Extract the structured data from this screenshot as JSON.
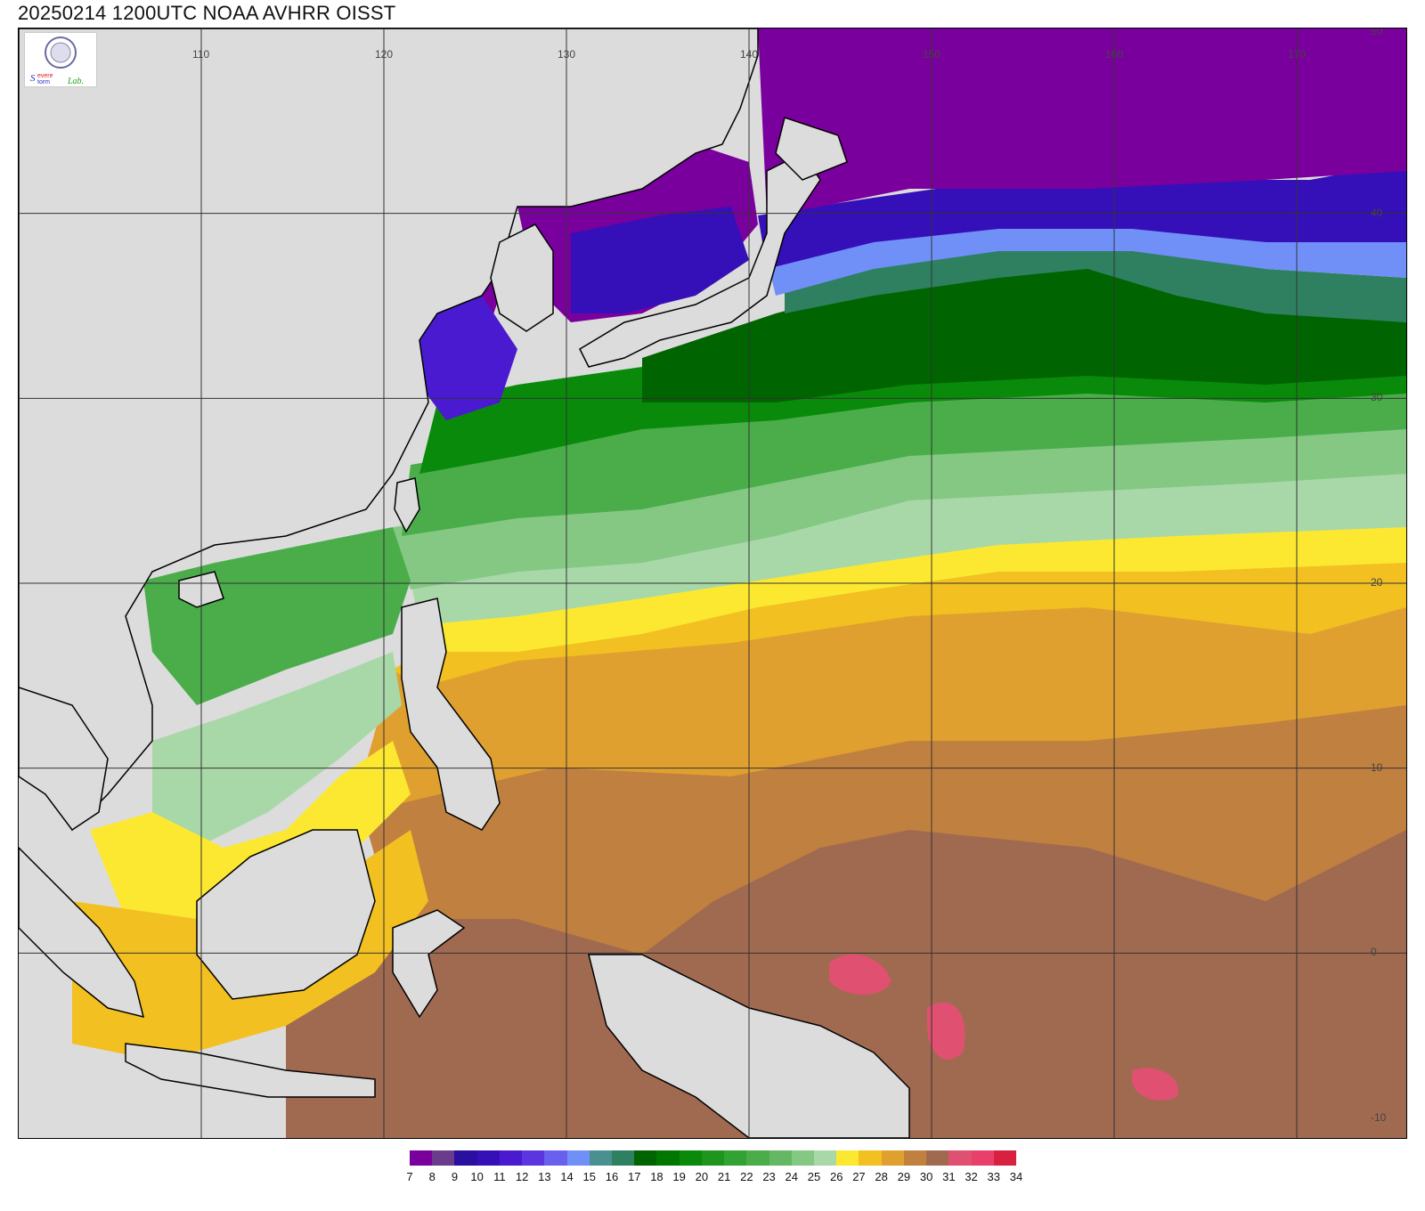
{
  "title": "20250214 1200UTC NOAA AVHRR OISST",
  "logo": {
    "org": "Severe Storm Lab.",
    "letters": [
      "Severe",
      "Storm",
      "Lab."
    ]
  },
  "axes": {
    "lon_ticks": [
      "110",
      "120",
      "130",
      "140",
      "150",
      "160",
      "170"
    ],
    "lat_ticks": [
      "50",
      "40",
      "30",
      "20",
      "10",
      "0",
      "-10"
    ],
    "lon_range": [
      100,
      176
    ],
    "lat_range": [
      -10,
      50
    ]
  },
  "colorbar": {
    "labels": [
      "7",
      "8",
      "9",
      "10",
      "11",
      "12",
      "13",
      "14",
      "15",
      "16",
      "17",
      "18",
      "19",
      "20",
      "21",
      "22",
      "23",
      "24",
      "25",
      "26",
      "27",
      "28",
      "29",
      "30",
      "31",
      "32",
      "33",
      "34"
    ],
    "colors": [
      "#7a009e",
      "#6a3c8c",
      "#2a0fa0",
      "#3510b8",
      "#4a1ad0",
      "#5a35e0",
      "#6a60f0",
      "#7090f8",
      "#4a9090",
      "#2e8060",
      "#006400",
      "#007800",
      "#0a8a0a",
      "#1e961e",
      "#32a232",
      "#4aad4a",
      "#64b864",
      "#84c884",
      "#a8d8a8",
      "#fce830",
      "#f2c020",
      "#e0a030",
      "#c08040",
      "#a06a50",
      "#e05070",
      "#e8406a",
      "#d82040"
    ]
  },
  "colors": {
    "land": "#dcdcdc",
    "coastline": "#000000",
    "grid": "#333333"
  }
}
